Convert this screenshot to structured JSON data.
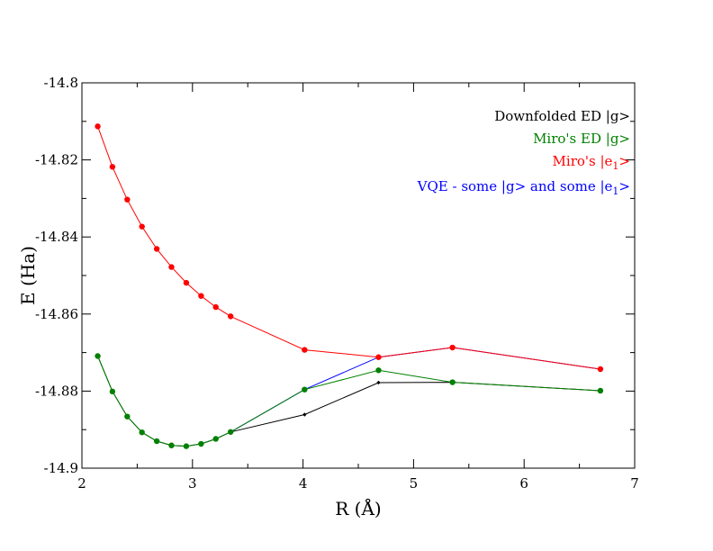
{
  "chart_data": {
    "type": "line",
    "title": "",
    "xlabel": "R (Å)",
    "ylabel": "E (Ha)",
    "xlim": [
      2,
      7
    ],
    "ylim": [
      -14.9,
      -14.8
    ],
    "x_ticks": [
      2,
      3,
      4,
      5,
      6,
      7
    ],
    "y_ticks": [
      -14.9,
      -14.88,
      -14.86,
      -14.84,
      -14.82,
      -14.8
    ],
    "x_tick_labels": [
      "2",
      "3",
      "4",
      "5",
      "6",
      "7"
    ],
    "y_tick_labels": [
      "-14.9",
      "-14.88",
      "-14.86",
      "-14.84",
      "-14.82",
      "-14.8"
    ],
    "grid": false,
    "legend_position": "top-right",
    "series": [
      {
        "name": "Downfolded ED |g>",
        "color": "#000000",
        "marker": "diamond",
        "x": [
          2.143,
          2.276,
          2.41,
          2.543,
          2.677,
          2.81,
          2.944,
          3.078,
          3.211,
          3.345,
          4.014,
          4.683,
          5.352,
          6.69
        ],
        "y": [
          -14.8709,
          -14.8801,
          -14.8866,
          -14.8907,
          -14.893,
          -14.8941,
          -14.8943,
          -14.8937,
          -14.8924,
          -14.8906,
          -14.8861,
          -14.8778,
          -14.8777,
          -14.8799
        ]
      },
      {
        "name": "Miro's ED |g>",
        "color": "#008000",
        "marker": "circle",
        "x": [
          2.143,
          2.276,
          2.41,
          2.543,
          2.677,
          2.81,
          2.944,
          3.078,
          3.211,
          3.345,
          4.014,
          4.683,
          5.352,
          6.69
        ],
        "y": [
          -14.8709,
          -14.8801,
          -14.8866,
          -14.8907,
          -14.893,
          -14.8941,
          -14.8943,
          -14.8937,
          -14.8924,
          -14.8906,
          -14.8796,
          -14.8746,
          -14.8777,
          -14.8799
        ]
      },
      {
        "name": "Miro's |e1>",
        "name_main": "Miro's |e",
        "name_sub": "1",
        "name_tail": ">",
        "color": "#ff0000",
        "marker": "circle",
        "x": [
          2.143,
          2.276,
          2.41,
          2.543,
          2.677,
          2.81,
          2.944,
          3.078,
          3.211,
          3.345,
          4.014,
          4.683,
          5.352,
          6.69
        ],
        "y": [
          -14.8113,
          -14.8218,
          -14.8303,
          -14.8373,
          -14.8431,
          -14.8478,
          -14.8519,
          -14.8553,
          -14.8582,
          -14.8606,
          -14.8693,
          -14.8712,
          -14.8687,
          -14.8743
        ]
      },
      {
        "name": "VQE - some |g> and some |e1>",
        "name_main": "VQE - some |g> and some |e",
        "name_sub": "1",
        "name_tail": ">",
        "color": "#0000ff",
        "marker": "none",
        "x": [
          3.345,
          4.014,
          4.683,
          5.352,
          6.69
        ],
        "y": [
          -14.8906,
          -14.8796,
          -14.8712,
          -14.8687,
          -14.8743
        ]
      }
    ]
  }
}
